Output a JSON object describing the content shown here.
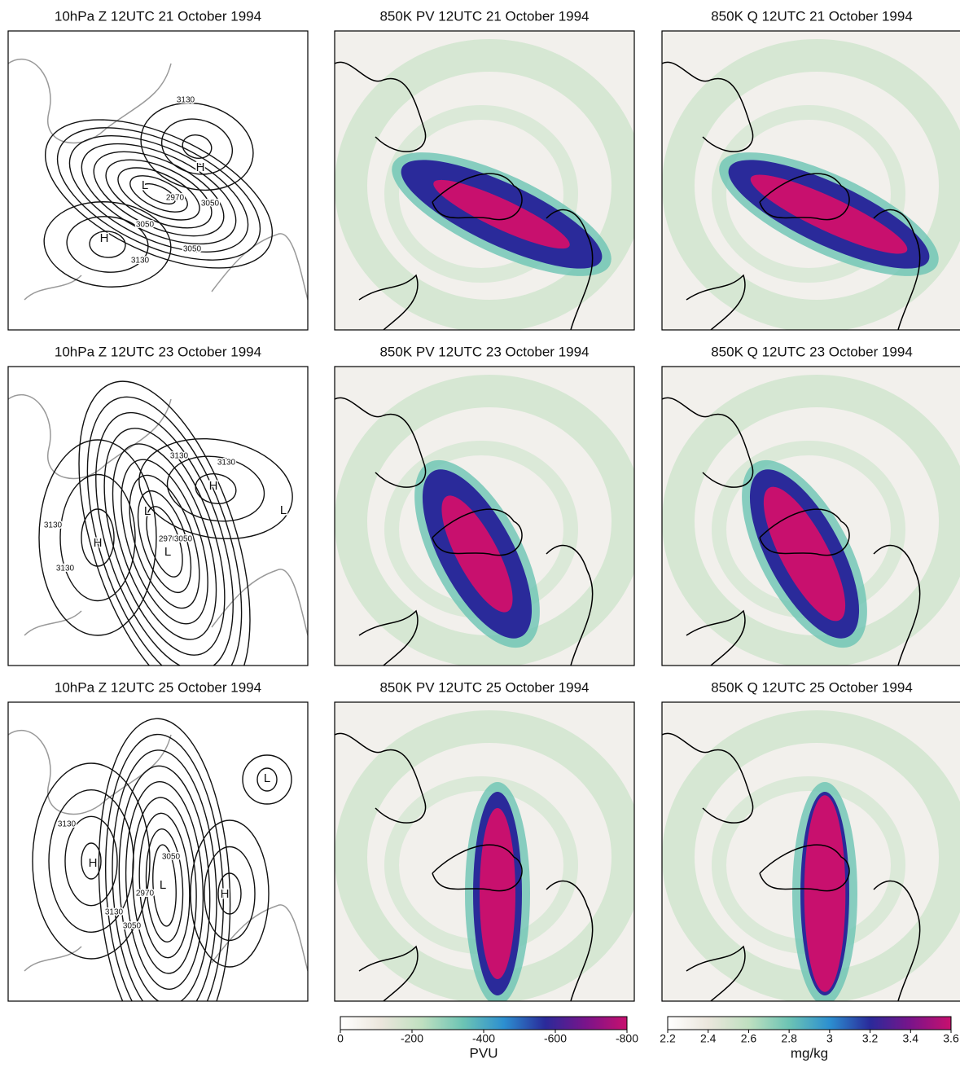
{
  "panels": [
    {
      "title": "10hPa Z 12UTC 21 October 1994",
      "kind": "contour",
      "labels": [
        "3130",
        "H",
        "L",
        "2970",
        "3050",
        "3050",
        "H",
        "3130",
        "3050"
      ]
    },
    {
      "title": "850K PV 12UTC 21 October 1994",
      "kind": "pv",
      "labels": []
    },
    {
      "title": "850K Q 12UTC 21 October 1994",
      "kind": "q",
      "labels": []
    },
    {
      "title": "10hPa Z 12UTC 23 October 1994",
      "kind": "contour",
      "labels": [
        "3130",
        "3130",
        "H",
        "L",
        "3130",
        "L",
        "2970",
        "H",
        "3050",
        "L",
        "3130"
      ]
    },
    {
      "title": "850K PV 12UTC 23 October 1994",
      "kind": "pv",
      "labels": []
    },
    {
      "title": "850K Q 12UTC 23 October 1994",
      "kind": "q",
      "labels": []
    },
    {
      "title": "10hPa Z 12UTC 25 October 1994",
      "kind": "contour",
      "labels": [
        "L",
        "3130",
        "H",
        "3050",
        "L",
        "2970",
        "H",
        "3130",
        "3050"
      ]
    },
    {
      "title": "850K PV 12UTC 25 October 1994",
      "kind": "pv",
      "labels": []
    },
    {
      "title": "850K Q 12UTC 25 October 1994",
      "kind": "q",
      "labels": []
    }
  ],
  "colorbars": [
    {
      "unit": "PVU",
      "lim": [
        0,
        -800
      ],
      "ticks": [
        0,
        -200,
        -400,
        -600,
        -800
      ],
      "colors": [
        "#ffffff",
        "#ebe6dc",
        "#bfe0c0",
        "#6cc4b4",
        "#2c8fd0",
        "#2a2a9a",
        "#7a148a",
        "#c8106e"
      ]
    },
    {
      "unit": "mg/kg",
      "lim": [
        2.2,
        3.6
      ],
      "ticks": [
        2.2,
        2.4,
        2.6,
        2.8,
        3,
        3.2,
        3.4,
        3.6
      ],
      "colors": [
        "#ffffff",
        "#ebe6dc",
        "#bfe0c0",
        "#6cc4b4",
        "#2c8fd0",
        "#2a2a9a",
        "#7a148a",
        "#c8106e"
      ]
    }
  ]
}
